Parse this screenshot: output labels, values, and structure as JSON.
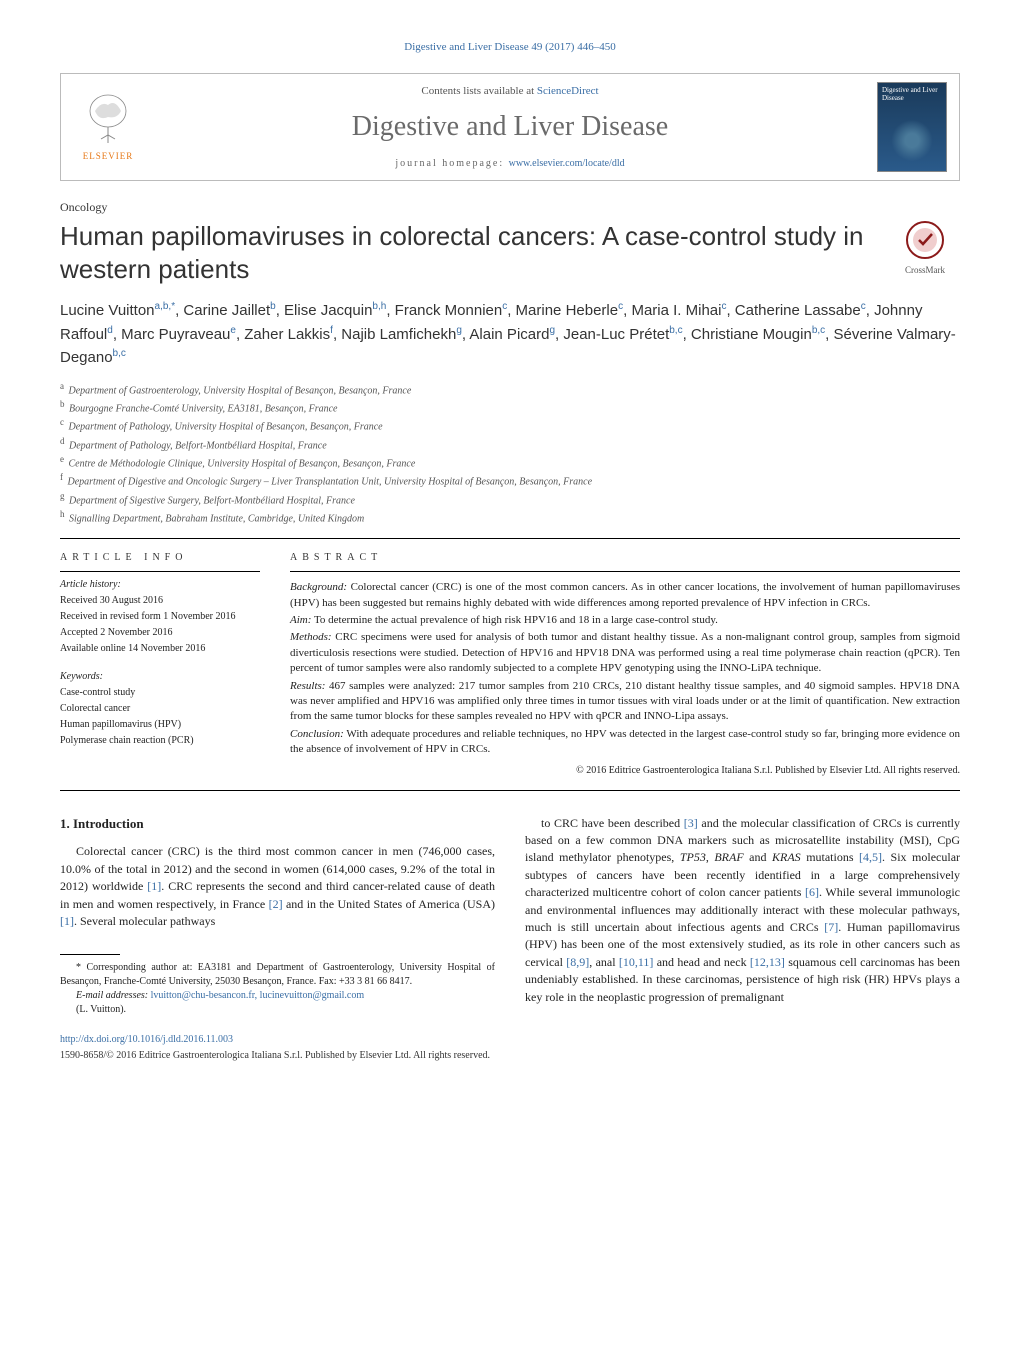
{
  "top_citation": "Digestive and Liver Disease 49 (2017) 446–450",
  "header": {
    "contents_prefix": "Contents lists available at ",
    "contents_link": "ScienceDirect",
    "journal": "Digestive and Liver Disease",
    "homepage_label": "journal homepage: ",
    "homepage_url": "www.elsevier.com/locate/dld",
    "publisher": "ELSEVIER",
    "cover_title": "Digestive and Liver Disease"
  },
  "section": "Oncology",
  "title": "Human papillomaviruses in colorectal cancers: A case-control study in western patients",
  "crossmark": "CrossMark",
  "authors_html": "Lucine Vuitton<sup>a,b,*</sup>, Carine Jaillet<sup>b</sup>, Elise Jacquin<sup>b,h</sup>, Franck Monnien<sup>c</sup>, Marine Heberle<sup>c</sup>, Maria I. Mihai<sup>c</sup>, Catherine Lassabe<sup>c</sup>, Johnny Raffoul<sup>d</sup>, Marc Puyraveau<sup>e</sup>, Zaher Lakkis<sup>f</sup>, Najib Lamfichekh<sup>g</sup>, Alain Picard<sup>g</sup>, Jean-Luc Prétet<sup>b,c</sup>, Christiane Mougin<sup>b,c</sup>, Séverine Valmary-Degano<sup>b,c</sup>",
  "affiliations": [
    {
      "k": "a",
      "t": "Department of Gastroenterology, University Hospital of Besançon, Besançon, France"
    },
    {
      "k": "b",
      "t": "Bourgogne Franche-Comté University, EA3181, Besançon, France"
    },
    {
      "k": "c",
      "t": "Department of Pathology, University Hospital of Besançon, Besançon, France"
    },
    {
      "k": "d",
      "t": "Department of Pathology, Belfort-Montbéliard Hospital, France"
    },
    {
      "k": "e",
      "t": "Centre de Méthodologie Clinique, University Hospital of Besançon, Besançon, France"
    },
    {
      "k": "f",
      "t": "Department of Digestive and Oncologic Surgery – Liver Transplantation Unit, University Hospital of Besançon, Besançon, France"
    },
    {
      "k": "g",
      "t": "Department of Sigestive Surgery, Belfort-Montbéliard Hospital, France"
    },
    {
      "k": "h",
      "t": "Signalling Department, Babraham Institute, Cambridge, United Kingdom"
    }
  ],
  "info": {
    "heading": "ARTICLE INFO",
    "history_label": "Article history:",
    "history": [
      "Received 30 August 2016",
      "Received in revised form 1 November 2016",
      "Accepted 2 November 2016",
      "Available online 14 November 2016"
    ],
    "keywords_label": "Keywords:",
    "keywords": [
      "Case-control study",
      "Colorectal cancer",
      "Human papillomavirus (HPV)",
      "Polymerase chain reaction (PCR)"
    ]
  },
  "abstract": {
    "heading": "ABSTRACT",
    "paras": [
      {
        "label": "Background:",
        "text": " Colorectal cancer (CRC) is one of the most common cancers. As in other cancer locations, the involvement of human papillomaviruses (HPV) has been suggested but remains highly debated with wide differences among reported prevalence of HPV infection in CRCs."
      },
      {
        "label": "Aim:",
        "text": " To determine the actual prevalence of high risk HPV16 and 18 in a large case-control study."
      },
      {
        "label": "Methods:",
        "text": " CRC specimens were used for analysis of both tumor and distant healthy tissue. As a non-malignant control group, samples from sigmoid diverticulosis resections were studied. Detection of HPV16 and HPV18 DNA was performed using a real time polymerase chain reaction (qPCR). Ten percent of tumor samples were also randomly subjected to a complete HPV genotyping using the INNO-LiPA technique."
      },
      {
        "label": "Results:",
        "text": " 467 samples were analyzed: 217 tumor samples from 210 CRCs, 210 distant healthy tissue samples, and 40 sigmoid samples. HPV18 DNA was never amplified and HPV16 was amplified only three times in tumor tissues with viral loads under or at the limit of quantification. New extraction from the same tumor blocks for these samples revealed no HPV with qPCR and INNO-Lipa assays."
      },
      {
        "label": "Conclusion:",
        "text": " With adequate procedures and reliable techniques, no HPV was detected in the largest case-control study so far, bringing more evidence on the absence of involvement of HPV in CRCs."
      }
    ],
    "copyright": "© 2016 Editrice Gastroenterologica Italiana S.r.l. Published by Elsevier Ltd. All rights reserved."
  },
  "intro": {
    "heading": "1. Introduction",
    "col1": "Colorectal cancer (CRC) is the third most common cancer in men (746,000 cases, 10.0% of the total in 2012) and the second in women (614,000 cases, 9.2% of the total in 2012) worldwide [1]. CRC represents the second and third cancer-related cause of death in men and women respectively, in France [2] and in the United States of America (USA) [1]. Several molecular pathways",
    "col2": "to CRC have been described [3] and the molecular classification of CRCs is currently based on a few common DNA markers such as microsatellite instability (MSI), CpG island methylator phenotypes, TP53, BRAF and KRAS mutations [4,5]. Six molecular subtypes of cancers have been recently identified in a large comprehensively characterized multicentre cohort of colon cancer patients [6]. While several immunologic and environmental influences may additionally interact with these molecular pathways, much is still uncertain about infectious agents and CRCs [7]. Human papillomavirus (HPV) has been one of the most extensively studied, as its role in other cancers such as cervical [8,9], anal [10,11] and head and neck [12,13] squamous cell carcinomas has been undeniably established. In these carcinomas, persistence of high risk (HR) HPVs plays a key role in the neoplastic progression of premalignant"
  },
  "footnotes": {
    "corr": "* Corresponding author at: EA3181 and Department of Gastroenterology, University Hospital of Besançon, Franche-Comté University, 25030 Besançon, France. Fax: +33 3 81 66 8417.",
    "email_label": "E-mail addresses: ",
    "emails": "lvuitton@chu-besancon.fr, lucinevuitton@gmail.com",
    "email_name": "(L. Vuitton)."
  },
  "doi": "http://dx.doi.org/10.1016/j.dld.2016.11.003",
  "bottom_copyright": "1590-8658/© 2016 Editrice Gastroenterologica Italiana S.r.l. Published by Elsevier Ltd. All rights reserved.",
  "colors": {
    "link": "#3a6ea5",
    "elsevier": "#e67817",
    "text": "#222222"
  }
}
